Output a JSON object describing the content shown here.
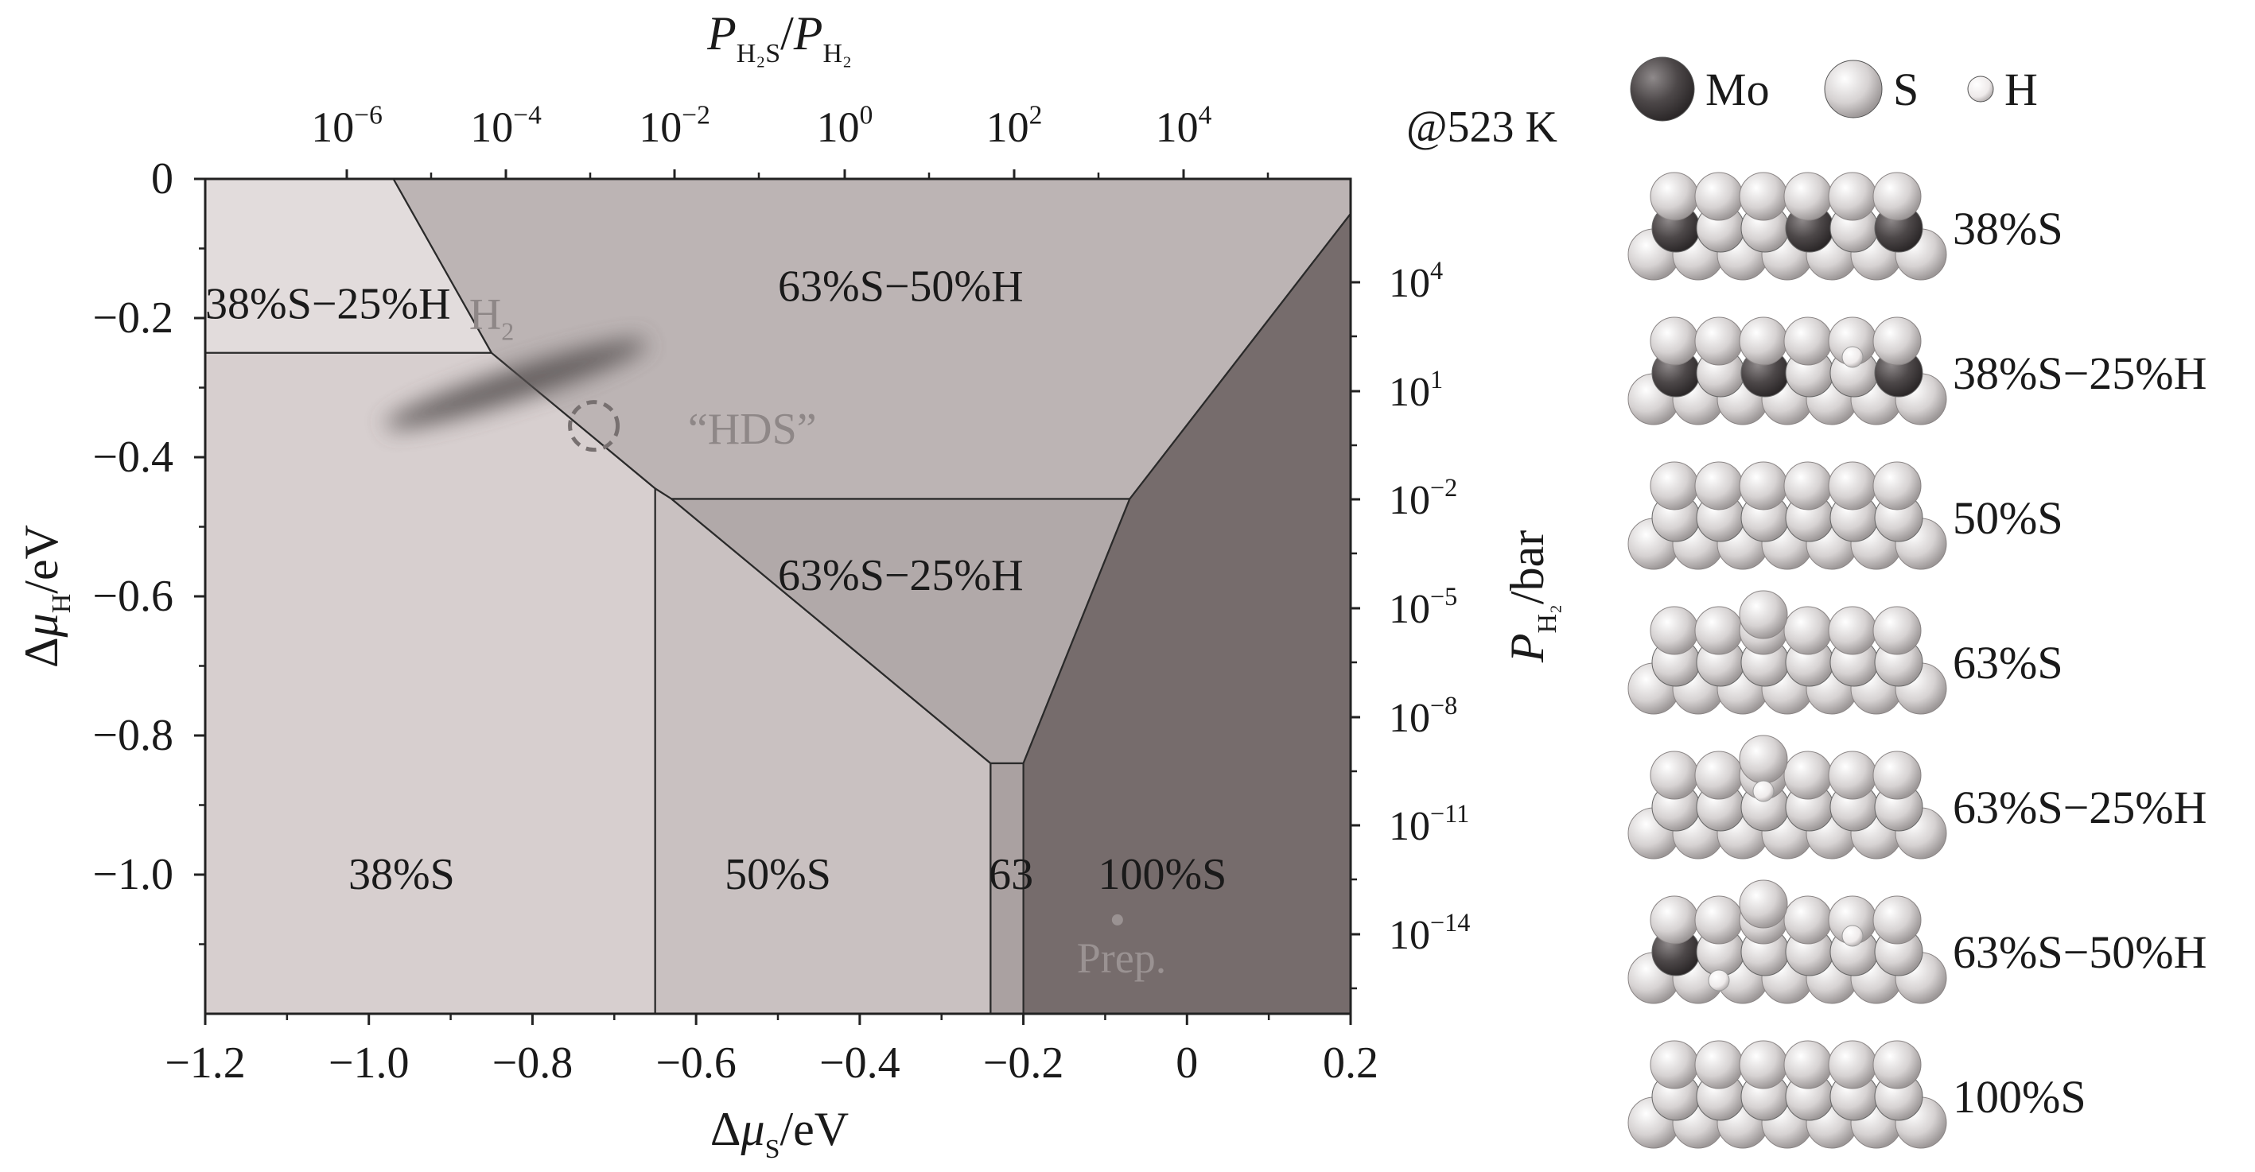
{
  "chart_data": {
    "type": "heatmap",
    "xlabel": "Δμ_S/eV",
    "ylabel": "Δμ_H/eV",
    "xlim": [
      -1.2,
      0.2
    ],
    "ylim": [
      -1.2,
      0
    ],
    "xticks": [
      -1.2,
      -1.0,
      -0.8,
      -0.6,
      -0.4,
      -0.2,
      0,
      0.2
    ],
    "xtick_labels": [
      "−1.2",
      "−1.0",
      "−0.8",
      "−0.6",
      "−0.4",
      "−0.2",
      "0",
      "0.2"
    ],
    "yticks": [
      0,
      -0.2,
      -0.4,
      -0.6,
      -0.8,
      -1.0
    ],
    "ytick_labels": [
      "0",
      "−0.2",
      "−0.4",
      "−0.6",
      "−0.8",
      "−1.0"
    ],
    "top_axis": {
      "label": "P_H2S/P_H2",
      "tick_labels": [
        "10^−6",
        "10^−4",
        "10^−2",
        "10^0",
        "10^2",
        "10^4"
      ],
      "temperature_label": "@523 K"
    },
    "right_axis": {
      "label": "P_H2/bar",
      "tick_labels": [
        "10^4",
        "10^1",
        "10^−2",
        "10^−5",
        "10^−8",
        "10^−11",
        "10^−14"
      ]
    },
    "regions": [
      {
        "label": "38%S−25%H",
        "color": "#e2dcdc",
        "polygon": [
          [
            -1.2,
            0
          ],
          [
            -0.97,
            0
          ],
          [
            -0.85,
            -0.25
          ],
          [
            -1.2,
            -0.25
          ]
        ]
      },
      {
        "label": "38%S",
        "color": "#d7cfcf",
        "polygon": [
          [
            -1.2,
            -0.25
          ],
          [
            -0.85,
            -0.25
          ],
          [
            -0.65,
            -0.445
          ],
          [
            -0.65,
            -1.2
          ],
          [
            -1.2,
            -1.2
          ]
        ]
      },
      {
        "label": "63%S−50%H",
        "color": "#bcb4b4",
        "polygon": [
          [
            -0.97,
            0
          ],
          [
            0.2,
            0
          ],
          [
            0.2,
            -0.05
          ],
          [
            -0.07,
            -0.46
          ],
          [
            -0.63,
            -0.46
          ],
          [
            -0.65,
            -0.445
          ],
          [
            -0.85,
            -0.25
          ]
        ]
      },
      {
        "label": "50%S",
        "color": "#c9c1c1",
        "polygon": [
          [
            -0.65,
            -0.445
          ],
          [
            -0.63,
            -0.46
          ],
          [
            -0.24,
            -0.84
          ],
          [
            -0.24,
            -1.2
          ],
          [
            -0.65,
            -1.2
          ]
        ]
      },
      {
        "label": "63%S−25%H",
        "color": "#b1a9a9",
        "polygon": [
          [
            -0.63,
            -0.46
          ],
          [
            -0.07,
            -0.46
          ],
          [
            -0.2,
            -0.84
          ],
          [
            -0.24,
            -0.84
          ]
        ]
      },
      {
        "label": "63",
        "color": "#aaa1a1",
        "polygon": [
          [
            -0.24,
            -0.84
          ],
          [
            -0.2,
            -0.84
          ],
          [
            -0.2,
            -1.2
          ],
          [
            -0.24,
            -1.2
          ]
        ]
      },
      {
        "label": "100%S",
        "color": "#766c6c",
        "polygon": [
          [
            0.2,
            -0.05
          ],
          [
            0.2,
            -1.2
          ],
          [
            -0.2,
            -1.2
          ],
          [
            -0.2,
            -0.84
          ],
          [
            -0.07,
            -0.46
          ]
        ]
      }
    ],
    "region_labels": [
      {
        "text": "38%S−25%H",
        "x": -1.05,
        "y": -0.18
      },
      {
        "text": "63%S−50%H",
        "x": -0.35,
        "y": -0.155
      },
      {
        "text": "63%S−25%H",
        "x": -0.35,
        "y": -0.57
      },
      {
        "text": "38%S",
        "x": -0.96,
        "y": -1.0
      },
      {
        "text": "50%S",
        "x": -0.5,
        "y": -1.0
      },
      {
        "text": "63",
        "x": -0.215,
        "y": -1.0
      },
      {
        "text": "100%S",
        "x": -0.03,
        "y": -1.0
      }
    ],
    "annotations": [
      {
        "text": "H₂",
        "x": -0.85,
        "y": -0.195
      },
      {
        "text": "“HDS”",
        "x": -0.61,
        "y": -0.36
      },
      {
        "text": "Prep.",
        "x": -0.08,
        "y": -1.12
      }
    ],
    "markers": [
      {
        "name": "H2 band",
        "from": [
          -0.98,
          -0.355
        ],
        "to": [
          -0.66,
          -0.235
        ]
      },
      {
        "name": "HDS",
        "x": -0.725,
        "y": -0.355
      },
      {
        "name": "Prep.",
        "x": -0.085,
        "y": -1.065
      }
    ]
  },
  "legend": {
    "items": [
      {
        "label": "Mo",
        "color": "#4a4546"
      },
      {
        "label": "S",
        "color": "#d9d5d5"
      },
      {
        "label": "H",
        "color": "#f4f2f2"
      }
    ]
  },
  "structures": [
    {
      "label": "38%S"
    },
    {
      "label": "38%S−25%H"
    },
    {
      "label": "50%S"
    },
    {
      "label": "63%S"
    },
    {
      "label": "63%S−25%H"
    },
    {
      "label": "63%S−50%H"
    },
    {
      "label": "100%S"
    }
  ]
}
